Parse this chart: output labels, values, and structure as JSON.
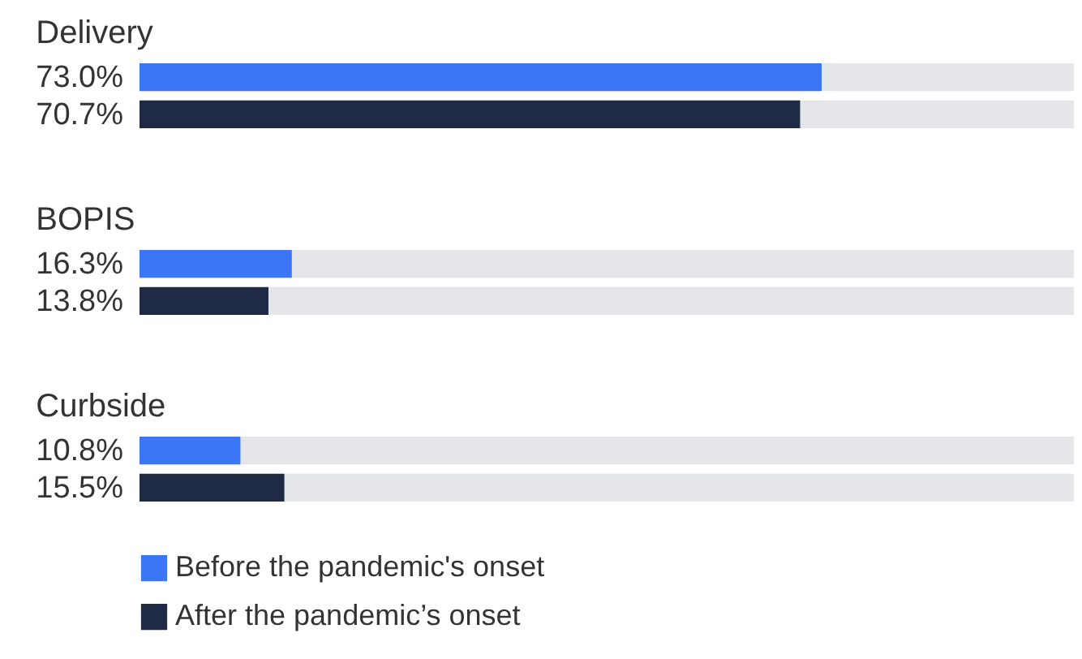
{
  "chart_data": {
    "type": "bar",
    "orientation": "horizontal",
    "categories": [
      "Delivery",
      "BOPIS",
      "Curbside"
    ],
    "series": [
      {
        "name": "Before the pandemic's onset",
        "color": "#3b76f6",
        "values": [
          73.0,
          16.3,
          10.8
        ],
        "value_labels": [
          "73.0%",
          "16.3%",
          "10.8%"
        ]
      },
      {
        "name": "After the pandemic’s onset",
        "color": "#1f2a44",
        "values": [
          70.7,
          13.8,
          15.5
        ],
        "value_labels": [
          "70.7%",
          "13.8%",
          "15.5%"
        ]
      }
    ],
    "xlim": [
      0,
      100
    ],
    "tick_labels": false,
    "legend": "bottom left"
  }
}
